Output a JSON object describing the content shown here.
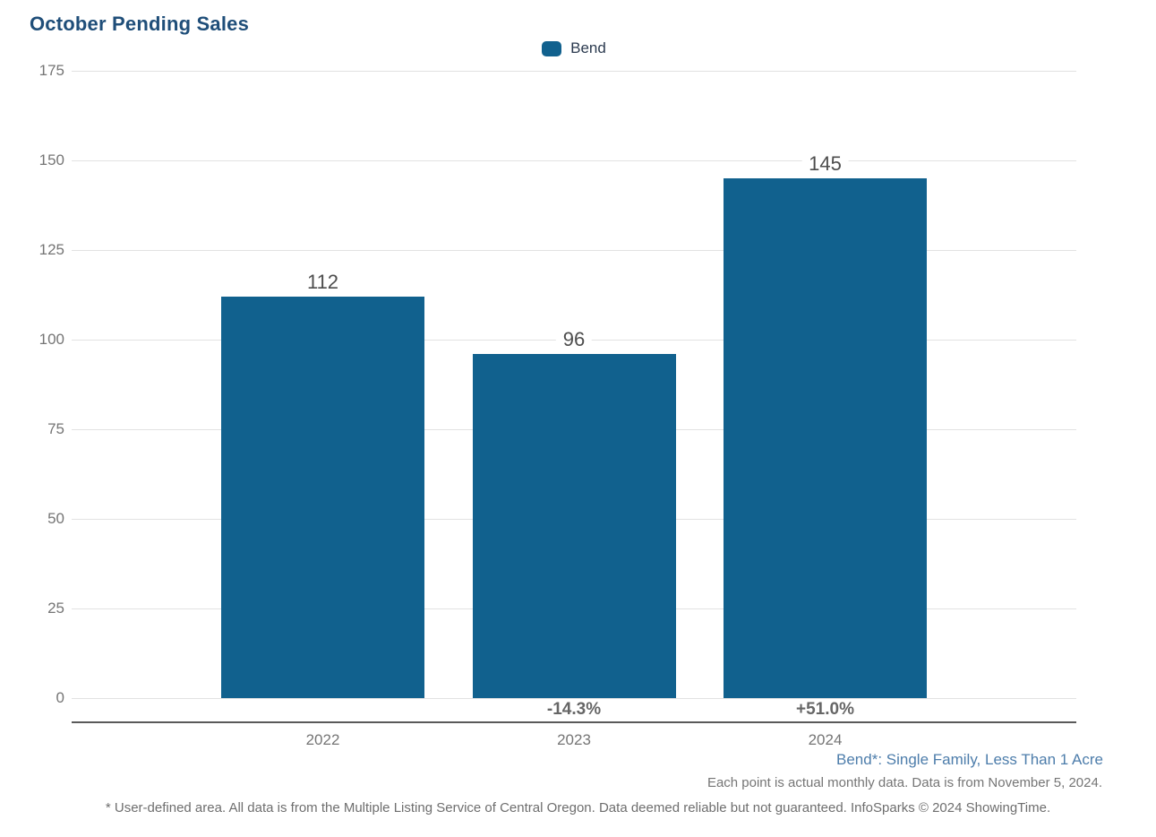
{
  "page": {
    "title": "October Pending Sales"
  },
  "legend": {
    "items": [
      {
        "label": "Bend"
      }
    ]
  },
  "footnotes": {
    "series_definition": "Bend*: Single Family, Less Than 1 Acre",
    "data_note": "Each point is actual monthly data. Data is from November 5, 2024.",
    "disclaimer": "* User-defined area. All data is from the Multiple Listing Service of Central Oregon. Data deemed reliable but not guaranteed. InfoSparks © 2024 ShowingTime."
  },
  "colors": {
    "bar": "#11618E",
    "title": "#1F4E79",
    "series_note": "#4D7DAB",
    "gridline": "#E2E2E2",
    "axis_line": "#5A5A5A"
  },
  "chart_data": {
    "type": "bar",
    "title": "October Pending Sales",
    "categories": [
      "2022",
      "2023",
      "2024"
    ],
    "series": [
      {
        "name": "Bend",
        "values": [
          112,
          96,
          145
        ]
      }
    ],
    "value_labels": [
      "112",
      "96",
      "145"
    ],
    "change_labels": [
      "",
      "-14.3%",
      "+51.0%"
    ],
    "xlabel": "",
    "ylabel": "",
    "ylim": [
      0,
      175
    ],
    "yticks": [
      0,
      25,
      50,
      75,
      100,
      125,
      150,
      175
    ],
    "grid": true,
    "legend_position": "top-center"
  }
}
